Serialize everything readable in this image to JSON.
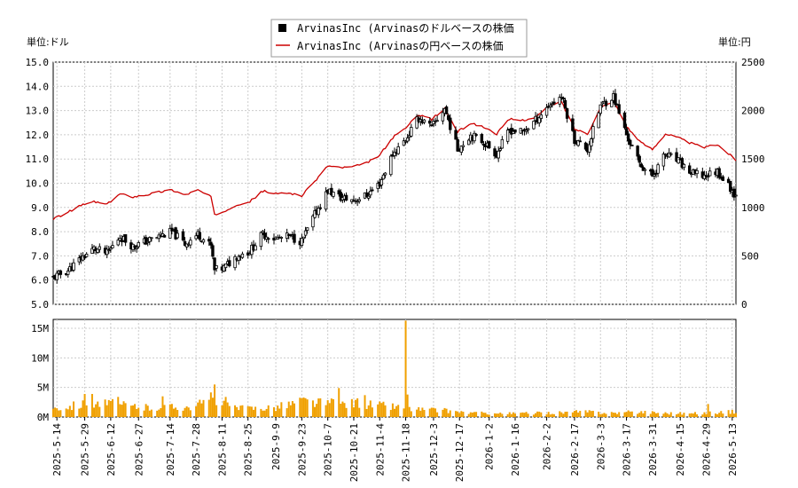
{
  "chart_data": {
    "type": "candlestick+line+bar",
    "legend": {
      "placement": "top-center",
      "entries": [
        {
          "label": "ArvinasInc (Arvinasのドルベースの株価",
          "color": "#000000",
          "marker": "square"
        },
        {
          "label": "ArvinasInc (Arvinasの円ベースの株価",
          "color": "#cc0000",
          "marker": "line"
        }
      ]
    },
    "left_axis_label": "単位:ドル",
    "right_axis_label": "単位:円",
    "price_axis": {
      "ylim": [
        5.0,
        15.0
      ],
      "ticks": [
        "5.0",
        "6.0",
        "7.0",
        "8.0",
        "9.0",
        "10.0",
        "11.0",
        "12.0",
        "13.0",
        "14.0",
        "15.0"
      ]
    },
    "yen_axis": {
      "ylim": [
        0,
        2500
      ],
      "ticks": [
        "0",
        "500",
        "1000",
        "1500",
        "2000",
        "2500"
      ]
    },
    "volume_axis": {
      "ylim": [
        0,
        16500000
      ],
      "ticks": [
        {
          "v": 0,
          "label": "0M"
        },
        {
          "v": 5000000,
          "label": "5M"
        },
        {
          "v": 10000000,
          "label": "10M"
        },
        {
          "v": 15000000,
          "label": "15M"
        }
      ]
    },
    "x_axis": {
      "start": "2025-05-12",
      "end": "2026-05-15",
      "ticks": [
        "2025-5-14",
        "2025-5-29",
        "2025-6-12",
        "2025-6-27",
        "2025-7-14",
        "2025-7-28",
        "2025-8-11",
        "2025-8-25",
        "2025-9-9",
        "2025-9-23",
        "2025-10-7",
        "2025-10-21",
        "2025-11-4",
        "2025-11-18",
        "2025-12-3",
        "2025-12-17",
        "2026-1-2",
        "2026-1-16",
        "2026-2-2",
        "2026-2-17",
        "2026-3-3",
        "2026-3-17",
        "2026-3-31",
        "2026-4-15",
        "2026-4-29",
        "2026-5-13"
      ]
    },
    "price_keypoints": [
      [
        "2025-05-12",
        6.1
      ],
      [
        "2025-05-20",
        6.4
      ],
      [
        "2025-05-27",
        6.9
      ],
      [
        "2025-06-03",
        7.3
      ],
      [
        "2025-06-10",
        7.1
      ],
      [
        "2025-06-17",
        7.8
      ],
      [
        "2025-06-24",
        7.4
      ],
      [
        "2025-07-01",
        7.6
      ],
      [
        "2025-07-08",
        7.8
      ],
      [
        "2025-07-15",
        8.0
      ],
      [
        "2025-07-22",
        7.5
      ],
      [
        "2025-07-29",
        7.9
      ],
      [
        "2025-08-05",
        7.4
      ],
      [
        "2025-08-07",
        6.4
      ],
      [
        "2025-08-12",
        6.5
      ],
      [
        "2025-08-19",
        7.0
      ],
      [
        "2025-08-26",
        7.2
      ],
      [
        "2025-09-02",
        7.9
      ],
      [
        "2025-09-09",
        7.7
      ],
      [
        "2025-09-16",
        7.8
      ],
      [
        "2025-09-23",
        7.6
      ],
      [
        "2025-09-30",
        8.7
      ],
      [
        "2025-10-07",
        9.7
      ],
      [
        "2025-10-14",
        9.4
      ],
      [
        "2025-10-21",
        9.3
      ],
      [
        "2025-10-28",
        9.5
      ],
      [
        "2025-11-04",
        10.0
      ],
      [
        "2025-11-11",
        11.2
      ],
      [
        "2025-11-18",
        11.8
      ],
      [
        "2025-11-25",
        12.7
      ],
      [
        "2025-12-02",
        12.3
      ],
      [
        "2025-12-09",
        13.1
      ],
      [
        "2025-12-16",
        11.4
      ],
      [
        "2025-12-23",
        12.0
      ],
      [
        "2025-12-30",
        11.7
      ],
      [
        "2026-01-06",
        11.2
      ],
      [
        "2026-01-13",
        12.2
      ],
      [
        "2026-01-20",
        12.1
      ],
      [
        "2026-01-27",
        12.6
      ],
      [
        "2026-02-03",
        13.2
      ],
      [
        "2026-02-10",
        13.6
      ],
      [
        "2026-02-17",
        11.8
      ],
      [
        "2026-02-24",
        11.4
      ],
      [
        "2026-03-03",
        13.2
      ],
      [
        "2026-03-10",
        13.6
      ],
      [
        "2026-03-17",
        12.0
      ],
      [
        "2026-03-24",
        10.8
      ],
      [
        "2026-03-31",
        10.3
      ],
      [
        "2026-04-07",
        11.2
      ],
      [
        "2026-04-14",
        10.9
      ],
      [
        "2026-04-21",
        10.4
      ],
      [
        "2026-04-28",
        10.3
      ],
      [
        "2026-05-05",
        10.5
      ],
      [
        "2026-05-12",
        9.8
      ],
      [
        "2026-05-15",
        9.5
      ]
    ],
    "yen_keypoints": [
      [
        "2025-05-12",
        880
      ],
      [
        "2025-05-20",
        950
      ],
      [
        "2025-05-27",
        1020
      ],
      [
        "2025-06-03",
        1060
      ],
      [
        "2025-06-10",
        1030
      ],
      [
        "2025-06-17",
        1140
      ],
      [
        "2025-06-24",
        1110
      ],
      [
        "2025-07-01",
        1130
      ],
      [
        "2025-07-08",
        1160
      ],
      [
        "2025-07-15",
        1180
      ],
      [
        "2025-07-22",
        1130
      ],
      [
        "2025-07-29",
        1180
      ],
      [
        "2025-08-05",
        1110
      ],
      [
        "2025-08-07",
        920
      ],
      [
        "2025-08-12",
        960
      ],
      [
        "2025-08-19",
        1030
      ],
      [
        "2025-08-26",
        1060
      ],
      [
        "2025-09-02",
        1170
      ],
      [
        "2025-09-09",
        1140
      ],
      [
        "2025-09-16",
        1150
      ],
      [
        "2025-09-23",
        1120
      ],
      [
        "2025-09-30",
        1270
      ],
      [
        "2025-10-07",
        1430
      ],
      [
        "2025-10-14",
        1410
      ],
      [
        "2025-10-21",
        1420
      ],
      [
        "2025-10-28",
        1460
      ],
      [
        "2025-11-04",
        1540
      ],
      [
        "2025-11-11",
        1720
      ],
      [
        "2025-11-18",
        1820
      ],
      [
        "2025-11-25",
        1960
      ],
      [
        "2025-12-02",
        1910
      ],
      [
        "2025-12-09",
        2020
      ],
      [
        "2025-12-16",
        1780
      ],
      [
        "2025-12-23",
        1870
      ],
      [
        "2025-12-30",
        1830
      ],
      [
        "2026-01-06",
        1760
      ],
      [
        "2026-01-13",
        1910
      ],
      [
        "2026-01-20",
        1900
      ],
      [
        "2026-01-27",
        1930
      ],
      [
        "2026-02-03",
        2040
      ],
      [
        "2026-02-10",
        2090
      ],
      [
        "2026-02-17",
        1810
      ],
      [
        "2026-02-24",
        1760
      ],
      [
        "2026-03-03",
        2030
      ],
      [
        "2026-03-10",
        2100
      ],
      [
        "2026-03-17",
        1840
      ],
      [
        "2026-03-24",
        1680
      ],
      [
        "2026-03-31",
        1600
      ],
      [
        "2026-04-07",
        1760
      ],
      [
        "2026-04-14",
        1720
      ],
      [
        "2026-04-21",
        1660
      ],
      [
        "2026-04-28",
        1620
      ],
      [
        "2026-05-05",
        1650
      ],
      [
        "2026-05-12",
        1540
      ],
      [
        "2026-05-15",
        1490
      ]
    ],
    "volume_keypoints": [
      [
        "2025-05-12",
        1500000
      ],
      [
        "2025-06-03",
        2500000
      ],
      [
        "2025-07-01",
        1600000
      ],
      [
        "2025-07-28",
        1800000
      ],
      [
        "2025-08-07",
        3500000
      ],
      [
        "2025-08-19",
        1400000
      ],
      [
        "2025-09-09",
        1700000
      ],
      [
        "2025-09-23",
        2700000
      ],
      [
        "2025-10-07",
        2300000
      ],
      [
        "2025-10-21",
        2400000
      ],
      [
        "2025-11-04",
        2000000
      ],
      [
        "2025-11-11",
        1800000
      ],
      [
        "2025-11-24",
        1300000
      ],
      [
        "2025-12-09",
        1100000
      ],
      [
        "2025-12-23",
        700000
      ],
      [
        "2026-01-13",
        600000
      ],
      [
        "2026-02-03",
        700000
      ],
      [
        "2026-02-24",
        900000
      ],
      [
        "2026-03-10",
        700000
      ],
      [
        "2026-03-24",
        900000
      ],
      [
        "2026-04-07",
        700000
      ],
      [
        "2026-04-21",
        600000
      ],
      [
        "2026-05-15",
        900000
      ]
    ],
    "volume_spikes": [
      [
        "2025-05-29",
        3900000
      ],
      [
        "2025-06-02",
        3900000
      ],
      [
        "2025-06-16",
        3400000
      ],
      [
        "2025-07-10",
        3500000
      ],
      [
        "2025-08-07",
        5500000
      ],
      [
        "2025-09-24",
        3300000
      ],
      [
        "2025-10-13",
        4900000
      ],
      [
        "2025-10-27",
        3700000
      ],
      [
        "2025-11-18",
        16300000
      ],
      [
        "2025-11-19",
        3800000
      ],
      [
        "2026-04-30",
        2200000
      ]
    ]
  }
}
